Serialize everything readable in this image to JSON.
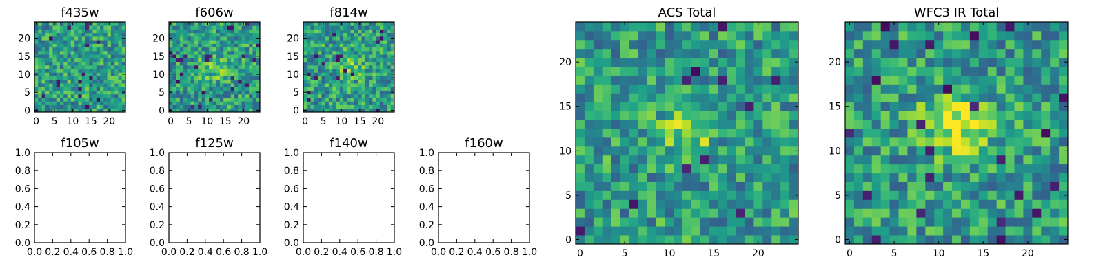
{
  "chart_data": [
    {
      "type": "heatmap",
      "title": "f435w",
      "grid_size": 25,
      "xlim": [
        -0.5,
        24.5
      ],
      "ylim": [
        -0.5,
        24.5
      ],
      "xticks": [
        0,
        5,
        10,
        15,
        20
      ],
      "yticks": [
        0,
        5,
        10,
        15,
        20
      ],
      "colormap": "viridis",
      "pattern": "noise",
      "has_dark_pixels": true
    },
    {
      "type": "heatmap",
      "title": "f606w",
      "grid_size": 25,
      "xlim": [
        -0.5,
        24.5
      ],
      "ylim": [
        -0.5,
        24.5
      ],
      "xticks": [
        0,
        5,
        10,
        15,
        20
      ],
      "yticks": [
        0,
        5,
        10,
        15,
        20
      ],
      "colormap": "viridis",
      "pattern": "noise with faint central source",
      "has_dark_pixels": true
    },
    {
      "type": "heatmap",
      "title": "f814w",
      "grid_size": 25,
      "xlim": [
        -0.5,
        24.5
      ],
      "ylim": [
        -0.5,
        24.5
      ],
      "xticks": [
        0,
        5,
        10,
        15,
        20
      ],
      "yticks": [
        0,
        5,
        10,
        15,
        20
      ],
      "colormap": "viridis",
      "pattern": "noise with faint central source",
      "has_dark_pixels": true
    },
    {
      "type": "empty",
      "title": "f105w",
      "xlim": [
        0,
        1
      ],
      "ylim": [
        0,
        1
      ],
      "xticks": [
        "0.0",
        "0.2",
        "0.4",
        "0.6",
        "0.8",
        "1.0"
      ],
      "yticks": [
        "0.0",
        "0.2",
        "0.4",
        "0.6",
        "0.8",
        "1.0"
      ]
    },
    {
      "type": "empty",
      "title": "f125w",
      "xlim": [
        0,
        1
      ],
      "ylim": [
        0,
        1
      ],
      "xticks": [
        "0.0",
        "0.2",
        "0.4",
        "0.6",
        "0.8",
        "1.0"
      ],
      "yticks": [
        "0.0",
        "0.2",
        "0.4",
        "0.6",
        "0.8",
        "1.0"
      ]
    },
    {
      "type": "empty",
      "title": "f140w",
      "xlim": [
        0,
        1
      ],
      "ylim": [
        0,
        1
      ],
      "xticks": [
        "0.0",
        "0.2",
        "0.4",
        "0.6",
        "0.8",
        "1.0"
      ],
      "yticks": [
        "0.0",
        "0.2",
        "0.4",
        "0.6",
        "0.8",
        "1.0"
      ]
    },
    {
      "type": "empty",
      "title": "f160w",
      "xlim": [
        0,
        1
      ],
      "ylim": [
        0,
        1
      ],
      "xticks": [
        "0.0",
        "0.2",
        "0.4",
        "0.6",
        "0.8",
        "1.0"
      ],
      "yticks": [
        "0.0",
        "0.2",
        "0.4",
        "0.6",
        "0.8",
        "1.0"
      ]
    },
    {
      "type": "heatmap",
      "title": "ACS Total",
      "grid_size": 25,
      "xlim": [
        -0.5,
        24.5
      ],
      "ylim": [
        -0.5,
        24.5
      ],
      "xticks": [
        0,
        5,
        10,
        15,
        20
      ],
      "yticks": [
        0,
        5,
        10,
        15,
        20
      ],
      "colormap": "viridis",
      "pattern": "noise with central bright source near (12, 12)",
      "has_dark_pixels": true
    },
    {
      "type": "heatmap",
      "title": "WFC3 IR Total",
      "grid_size": 25,
      "xlim": [
        -0.5,
        24.5
      ],
      "ylim": [
        -0.5,
        24.5
      ],
      "xticks": [
        0,
        5,
        10,
        15,
        20
      ],
      "yticks": [
        0,
        5,
        10,
        15,
        20
      ],
      "colormap": "viridis",
      "pattern": "noise with central bright source near (12, 13)",
      "has_dark_pixels": true
    }
  ]
}
